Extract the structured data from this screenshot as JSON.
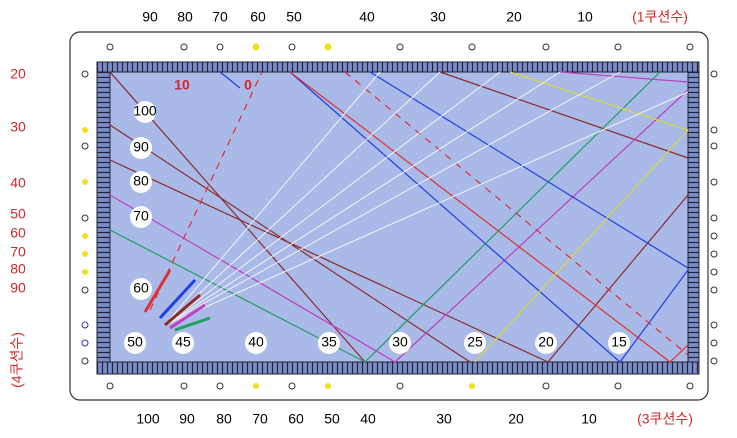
{
  "top_labels": [
    "90",
    "80",
    "70",
    "60",
    "50",
    "40",
    "30",
    "20",
    "10",
    "(1쿠션수)"
  ],
  "left_labels": [
    "20",
    "30",
    "40",
    "50",
    "60",
    "70",
    "80",
    "90",
    "(4쿠션수)"
  ],
  "bottom_labels": [
    "100",
    "90",
    "80",
    "70",
    "60",
    "50",
    "40",
    "30",
    "20",
    "10",
    "(3쿠션수)"
  ],
  "red_labels": [
    "10",
    "0"
  ],
  "circle_labels": [
    "100",
    "90",
    "80",
    "70",
    "60",
    "50",
    "45",
    "40",
    "35",
    "30",
    "25",
    "20",
    "15"
  ]
}
